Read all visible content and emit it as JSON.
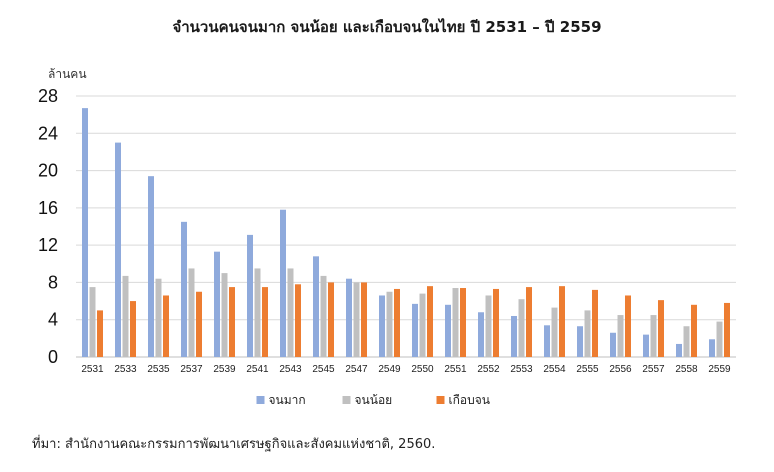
{
  "chart_data": {
    "type": "bar",
    "title": "จำนวนคนจนมาก จนน้อย และเกือบจนในไทย ปี 2531 – ปี 2559",
    "ylabel": "ล้านคน",
    "ylim": [
      0,
      28
    ],
    "yticks": [
      0,
      4,
      8,
      12,
      16,
      20,
      24,
      28
    ],
    "grid": true,
    "legend_position": "bottom",
    "categories": [
      "2531",
      "2533",
      "2535",
      "2537",
      "2539",
      "2541",
      "2543",
      "2545",
      "2547",
      "2549",
      "2550",
      "2551",
      "2552",
      "2553",
      "2554",
      "2555",
      "2556",
      "2557",
      "2558",
      "2559"
    ],
    "series": [
      {
        "name": "จนมาก",
        "color": "#8faadc",
        "values": [
          26.7,
          23.0,
          19.4,
          14.5,
          11.3,
          13.1,
          15.8,
          10.8,
          8.4,
          6.6,
          5.7,
          5.6,
          4.8,
          4.4,
          3.4,
          3.3,
          2.6,
          2.4,
          1.4,
          1.9
        ]
      },
      {
        "name": "จนน้อย",
        "color": "#c0c0c0",
        "values": [
          7.5,
          8.7,
          8.4,
          9.5,
          9.0,
          9.5,
          9.5,
          8.7,
          8.0,
          7.0,
          6.8,
          7.4,
          6.6,
          6.2,
          5.3,
          5.0,
          4.5,
          4.5,
          3.3,
          3.8
        ]
      },
      {
        "name": "เกือบจน",
        "color": "#ed7d31",
        "values": [
          5.0,
          6.0,
          6.6,
          7.0,
          7.5,
          7.5,
          7.8,
          8.0,
          8.0,
          7.3,
          7.6,
          7.4,
          7.3,
          7.5,
          7.6,
          7.2,
          6.6,
          6.1,
          5.6,
          5.8
        ]
      }
    ]
  },
  "source_note": "ที่มา: สำนักงานคณะกรรมการพัฒนาเศรษฐกิจและสังคมแห่งชาติ, 2560."
}
